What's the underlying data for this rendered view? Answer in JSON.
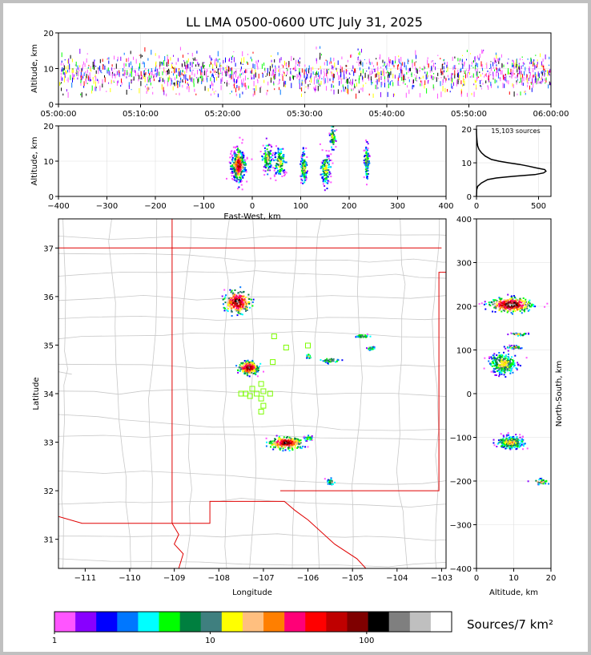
{
  "title": "LL LMA 0500-0600 UTC July 31, 2025",
  "chart_data": [
    {
      "id": "time-height",
      "type": "scatter",
      "ylabel": "Altitude, km",
      "xlim": [
        "05:00:00",
        "06:00:00"
      ],
      "ylim": [
        0,
        20
      ],
      "xticks": [
        "05:00:00",
        "05:10:00",
        "05:20:00",
        "05:30:00",
        "05:40:00",
        "05:50:00",
        "06:00:00"
      ],
      "yticks": [
        0,
        10,
        20
      ],
      "altitude_band_km": [
        3,
        18
      ]
    },
    {
      "id": "ew-altitude",
      "type": "scatter",
      "xlabel": "East-West, km",
      "ylabel": "Altitude, km",
      "xlim": [
        -400,
        400
      ],
      "ylim": [
        0,
        20
      ],
      "xticks": [
        -400,
        -300,
        -200,
        -100,
        0,
        100,
        200,
        300,
        400
      ],
      "yticks": [
        0,
        10,
        20
      ],
      "clusters": [
        {
          "x": -30,
          "alt": 9,
          "spread_x": 12
        },
        {
          "x": 30,
          "alt": 11,
          "spread_x": 8
        },
        {
          "x": 55,
          "alt": 10,
          "spread_x": 10
        },
        {
          "x": 105,
          "alt": 8,
          "spread_x": 6
        },
        {
          "x": 150,
          "alt": 8,
          "spread_x": 8
        },
        {
          "x": 165,
          "alt": 17,
          "spread_x": 5
        },
        {
          "x": 235,
          "alt": 10,
          "spread_x": 4
        }
      ]
    },
    {
      "id": "altitude-histogram",
      "type": "line",
      "annotation": "15,103 sources",
      "xlim": [
        0,
        600
      ],
      "ylim": [
        0,
        21
      ],
      "xticks": [
        0,
        500
      ],
      "yticks": [
        0,
        10,
        20
      ],
      "alt": [
        0,
        2,
        3,
        4,
        5,
        5.5,
        6,
        6.5,
        7,
        7.5,
        8,
        8.5,
        9,
        9.5,
        10,
        10.5,
        11,
        12,
        13,
        14,
        15,
        16,
        17,
        18,
        19,
        20
      ],
      "count": [
        0,
        2,
        10,
        40,
        90,
        160,
        300,
        470,
        540,
        560,
        550,
        480,
        420,
        350,
        260,
        180,
        120,
        70,
        40,
        20,
        10,
        6,
        3,
        1,
        0,
        0
      ]
    },
    {
      "id": "plan-view",
      "type": "scatter",
      "xlabel": "Longitude",
      "ylabel": "Latitude",
      "xlim": [
        -111.6,
        -102.9
      ],
      "ylim": [
        30.4,
        37.6
      ],
      "xticks": [
        -111,
        -110,
        -109,
        -108,
        -107,
        -106,
        -105,
        -104,
        -103
      ],
      "yticks": [
        31,
        32,
        33,
        34,
        35,
        36,
        37
      ],
      "clusters": [
        {
          "lon": -107.6,
          "lat": 35.9,
          "rx": 0.28,
          "ry": 0.22
        },
        {
          "lon": -107.35,
          "lat": 34.55,
          "rx": 0.22,
          "ry": 0.12
        },
        {
          "lon": -106.5,
          "lat": 33.0,
          "rx": 0.35,
          "ry": 0.12
        },
        {
          "lon": -105.5,
          "lat": 32.2,
          "rx": 0.08,
          "ry": 0.06
        },
        {
          "lon": -105.5,
          "lat": 34.7,
          "rx": 0.2,
          "ry": 0.05
        },
        {
          "lon": -106.0,
          "lat": 34.78,
          "rx": 0.05,
          "ry": 0.04
        },
        {
          "lon": -106.0,
          "lat": 33.1,
          "rx": 0.08,
          "ry": 0.04
        },
        {
          "lon": -104.8,
          "lat": 35.2,
          "rx": 0.15,
          "ry": 0.03
        },
        {
          "lon": -104.6,
          "lat": 34.95,
          "rx": 0.08,
          "ry": 0.03
        }
      ],
      "stations": [
        [
          -106.76,
          35.18
        ],
        [
          -106.0,
          34.99
        ],
        [
          -106.49,
          34.95
        ],
        [
          -106.79,
          34.65
        ],
        [
          -107.05,
          34.2
        ],
        [
          -107.25,
          34.1
        ],
        [
          -107.0,
          34.05
        ],
        [
          -107.4,
          34.0
        ],
        [
          -107.15,
          34.0
        ],
        [
          -107.3,
          33.95
        ],
        [
          -106.85,
          34.0
        ],
        [
          -107.05,
          33.9
        ],
        [
          -107.0,
          33.75
        ],
        [
          -107.05,
          33.63
        ],
        [
          -107.5,
          34.0
        ]
      ]
    },
    {
      "id": "altitude-ns",
      "type": "scatter",
      "xlabel": "Altitude, km",
      "ylabel": "North-South, km",
      "xlim": [
        0,
        20
      ],
      "ylim": [
        -400,
        400
      ],
      "xticks": [
        0,
        10,
        20
      ],
      "yticks": [
        -400,
        -300,
        -200,
        -100,
        0,
        100,
        200,
        300,
        400
      ],
      "clusters": [
        {
          "alt": 9,
          "ns": 205,
          "ra": 5,
          "rns": 15
        },
        {
          "alt": 7,
          "ns": 70,
          "ra": 3,
          "rns": 20
        },
        {
          "alt": 9,
          "ns": -110,
          "ra": 3,
          "rns": 12
        },
        {
          "alt": 17,
          "ns": -200,
          "ra": 2,
          "rns": 6
        },
        {
          "alt": 11,
          "ns": 137,
          "ra": 2,
          "rns": 3
        },
        {
          "alt": 10,
          "ns": 108,
          "ra": 2,
          "rns": 3
        }
      ]
    }
  ],
  "colorbar": {
    "label": "Sources/7 km²",
    "ticks": [
      "1",
      "10",
      "100"
    ],
    "colors": [
      "#ff55ff",
      "#8800ff",
      "#0000ff",
      "#0077ff",
      "#00ffff",
      "#00ff00",
      "#007f3f",
      "#3f7f7f",
      "#ffff00",
      "#ffbf7f",
      "#ff7f00",
      "#ff0077",
      "#ff0000",
      "#bf0000",
      "#7f0000",
      "#000000",
      "#7f7f7f",
      "#bfbfbf",
      "#ffffff"
    ]
  }
}
